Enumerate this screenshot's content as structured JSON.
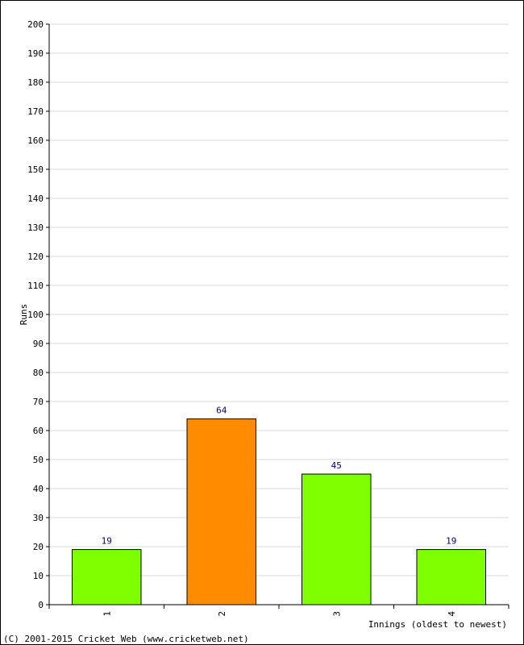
{
  "chart_data": {
    "type": "bar",
    "categories": [
      "1",
      "2",
      "3",
      "4"
    ],
    "values": [
      19,
      64,
      45,
      19
    ],
    "value_labels": [
      "19",
      "64",
      "45",
      "19"
    ],
    "bar_colors": [
      "#80ff00",
      "#ff8c00",
      "#80ff00",
      "#80ff00"
    ],
    "xlabel": "Innings (oldest to newest)",
    "ylabel": "Runs",
    "ylim": [
      0,
      200
    ],
    "yticks": [
      "0",
      "10",
      "20",
      "30",
      "40",
      "50",
      "60",
      "70",
      "80",
      "90",
      "100",
      "110",
      "120",
      "130",
      "140",
      "150",
      "160",
      "170",
      "180",
      "190",
      "200"
    ],
    "grid": true
  },
  "footer": "(C) 2001-2015 Cricket Web (www.cricketweb.net)"
}
